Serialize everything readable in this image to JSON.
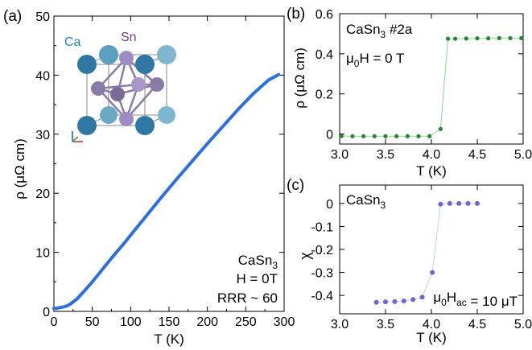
{
  "chart_data": [
    {
      "type": "line",
      "panel_label": "(a)",
      "xlabel": "T (K)",
      "ylabel": "ρ (μΩ cm)",
      "xlim": [
        0,
        300
      ],
      "ylim": [
        0,
        50
      ],
      "xticks": [
        "0",
        "50",
        "100",
        "150",
        "200",
        "250",
        "300"
      ],
      "yticks": [
        "0",
        "10",
        "20",
        "30",
        "40",
        "50"
      ],
      "annotations": [
        "CaSn3",
        "H = 0T",
        "RRR ~ 60"
      ],
      "inset_labels": [
        "Ca",
        "Sn"
      ],
      "colors": {
        "series": "#2b6fe0",
        "ca": "#1d82b8",
        "sn": "#6a3d8f"
      },
      "series": [
        {
          "x": [
            0,
            4,
            6,
            10,
            14,
            18,
            22,
            26,
            30,
            35,
            40,
            50,
            60,
            70,
            80,
            90,
            100,
            120,
            140,
            160,
            180,
            200,
            220,
            240,
            260,
            280,
            293
          ],
          "y": [
            0.5,
            0.5,
            0.6,
            0.7,
            0.8,
            1.0,
            1.3,
            1.7,
            2.1,
            2.8,
            3.5,
            5.0,
            6.6,
            8.2,
            9.8,
            11.3,
            12.9,
            16.1,
            19.3,
            22.4,
            25.4,
            28.4,
            31.3,
            34.2,
            36.9,
            39.2,
            40.1
          ]
        }
      ]
    },
    {
      "type": "line",
      "panel_label": "(b)",
      "xlabel": "T (K)",
      "ylabel": "ρ (μΩ cm)",
      "xlim": [
        3.0,
        5.0
      ],
      "ylim": [
        -0.05,
        0.6
      ],
      "xticks": [
        "3.0",
        "3.5",
        "4.0",
        "4.5",
        "5.0"
      ],
      "yticks": [
        "0",
        "0.2",
        "0.4",
        "0.6"
      ],
      "annotations": [
        "CaSn3 #2a",
        "μ0H = 0 T"
      ],
      "colors": {
        "series": "#1f8a2a",
        "line": "#8fd19e"
      },
      "series": [
        {
          "x": [
            3.02,
            3.14,
            3.26,
            3.38,
            3.5,
            3.62,
            3.74,
            3.86,
            3.98,
            4.1,
            4.18,
            4.26,
            4.38,
            4.5,
            4.62,
            4.74,
            4.86,
            4.98
          ],
          "y": [
            -0.01,
            -0.011,
            -0.011,
            -0.011,
            -0.011,
            -0.011,
            -0.011,
            -0.011,
            -0.011,
            0.025,
            0.475,
            0.475,
            0.476,
            0.477,
            0.477,
            0.478,
            0.478,
            0.478
          ]
        }
      ]
    },
    {
      "type": "line",
      "panel_label": "(c)",
      "xlabel": "T (K)",
      "ylabel": "χ",
      "xlim": [
        3.0,
        5.0
      ],
      "ylim": [
        -0.48,
        0.08
      ],
      "xticks": [
        "3.0",
        "3.5",
        "4.0",
        "4.5",
        "5.0"
      ],
      "yticks": [
        "-0.4",
        "-0.3",
        "-0.2",
        "-0.1",
        "0"
      ],
      "annotations": [
        "CaSn3",
        "μ0Hac = 10 μT"
      ],
      "colors": {
        "series": "#7b5fd0",
        "line": "#b7d9e8"
      },
      "series": [
        {
          "x": [
            3.4,
            3.5,
            3.6,
            3.7,
            3.8,
            3.9,
            4.01,
            4.1,
            4.2,
            4.3,
            4.4,
            4.5
          ],
          "y": [
            -0.43,
            -0.428,
            -0.427,
            -0.424,
            -0.418,
            -0.408,
            -0.3,
            -0.003,
            0.0,
            0.0,
            0.0,
            0.0
          ]
        }
      ]
    }
  ]
}
